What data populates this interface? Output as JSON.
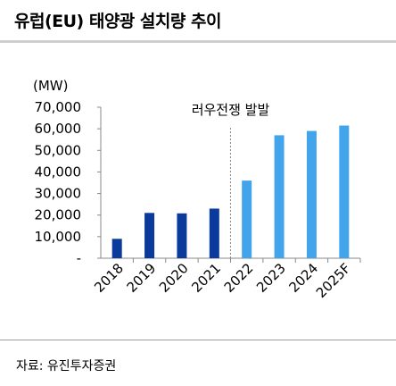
{
  "title": "유럽(EU) 태양광 설치량 추이",
  "source": "자료: 유진투자증권",
  "chart_data": {
    "type": "bar",
    "unit": "(MW)",
    "categories": [
      "2018",
      "2019",
      "2020",
      "2021",
      "2022",
      "2023",
      "2024",
      "2025F"
    ],
    "values": [
      9000,
      21000,
      20800,
      23000,
      36000,
      57000,
      59000,
      61500
    ],
    "ylim": [
      0,
      70000
    ],
    "yticks": [
      "-",
      "10,000",
      "20,000",
      "30,000",
      "40,000",
      "50,000",
      "60,000",
      "70,000"
    ],
    "annotation": "러우전쟁 발발",
    "colors": {
      "before": "#0a3a9c",
      "after": "#42a5ec",
      "axis": "#888888",
      "divider": "#888888"
    },
    "highlight_from_index": 4,
    "grid": false
  }
}
